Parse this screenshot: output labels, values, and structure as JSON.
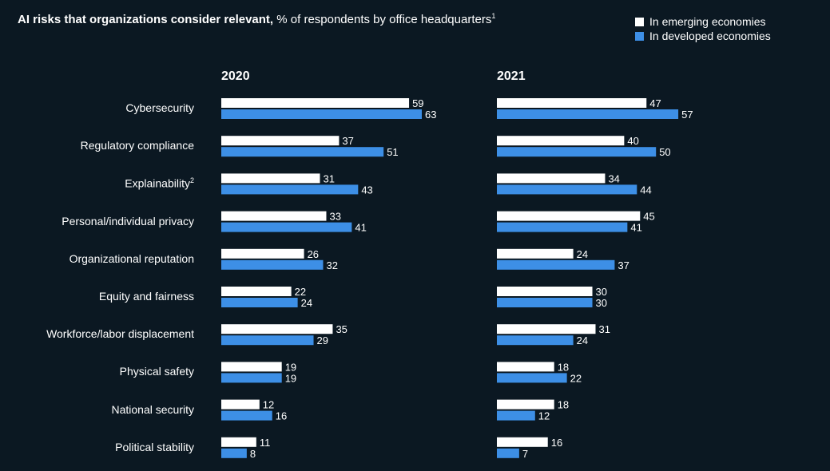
{
  "title": {
    "bold": "AI risks that organizations consider relevant,",
    "normal": "% of respondents by office headquarters",
    "footnote": "1"
  },
  "legend": {
    "emerging": "In emerging economies",
    "developed": "In developed economies"
  },
  "colors": {
    "background": "#0b1822",
    "emerging": "#ffffff",
    "developed": "#3d8fe6"
  },
  "chart_data": {
    "type": "bar",
    "orientation": "horizontal",
    "categories": [
      "Cybersecurity",
      "Regulatory compliance",
      "Explainability",
      "Personal/individual privacy",
      "Organizational reputation",
      "Equity and fairness",
      "Workforce/labor displacement",
      "Physical safety",
      "National security",
      "Political stability"
    ],
    "category_footnotes": [
      "",
      "",
      "2",
      "",
      "",
      "",
      "",
      "",
      "",
      ""
    ],
    "panels": [
      {
        "label": "2020",
        "series": [
          {
            "name": "In emerging economies",
            "values": [
              59,
              37,
              31,
              33,
              26,
              22,
              35,
              19,
              12,
              11
            ]
          },
          {
            "name": "In developed economies",
            "values": [
              63,
              51,
              43,
              41,
              32,
              24,
              29,
              19,
              16,
              8
            ]
          }
        ]
      },
      {
        "label": "2021",
        "series": [
          {
            "name": "In emerging economies",
            "values": [
              47,
              40,
              34,
              45,
              24,
              30,
              31,
              18,
              18,
              16
            ]
          },
          {
            "name": "In developed economies",
            "values": [
              57,
              50,
              44,
              41,
              37,
              30,
              24,
              22,
              12,
              7
            ]
          }
        ]
      }
    ],
    "xlim": [
      0,
      70
    ],
    "grid": false,
    "legend_position": "top-right"
  }
}
